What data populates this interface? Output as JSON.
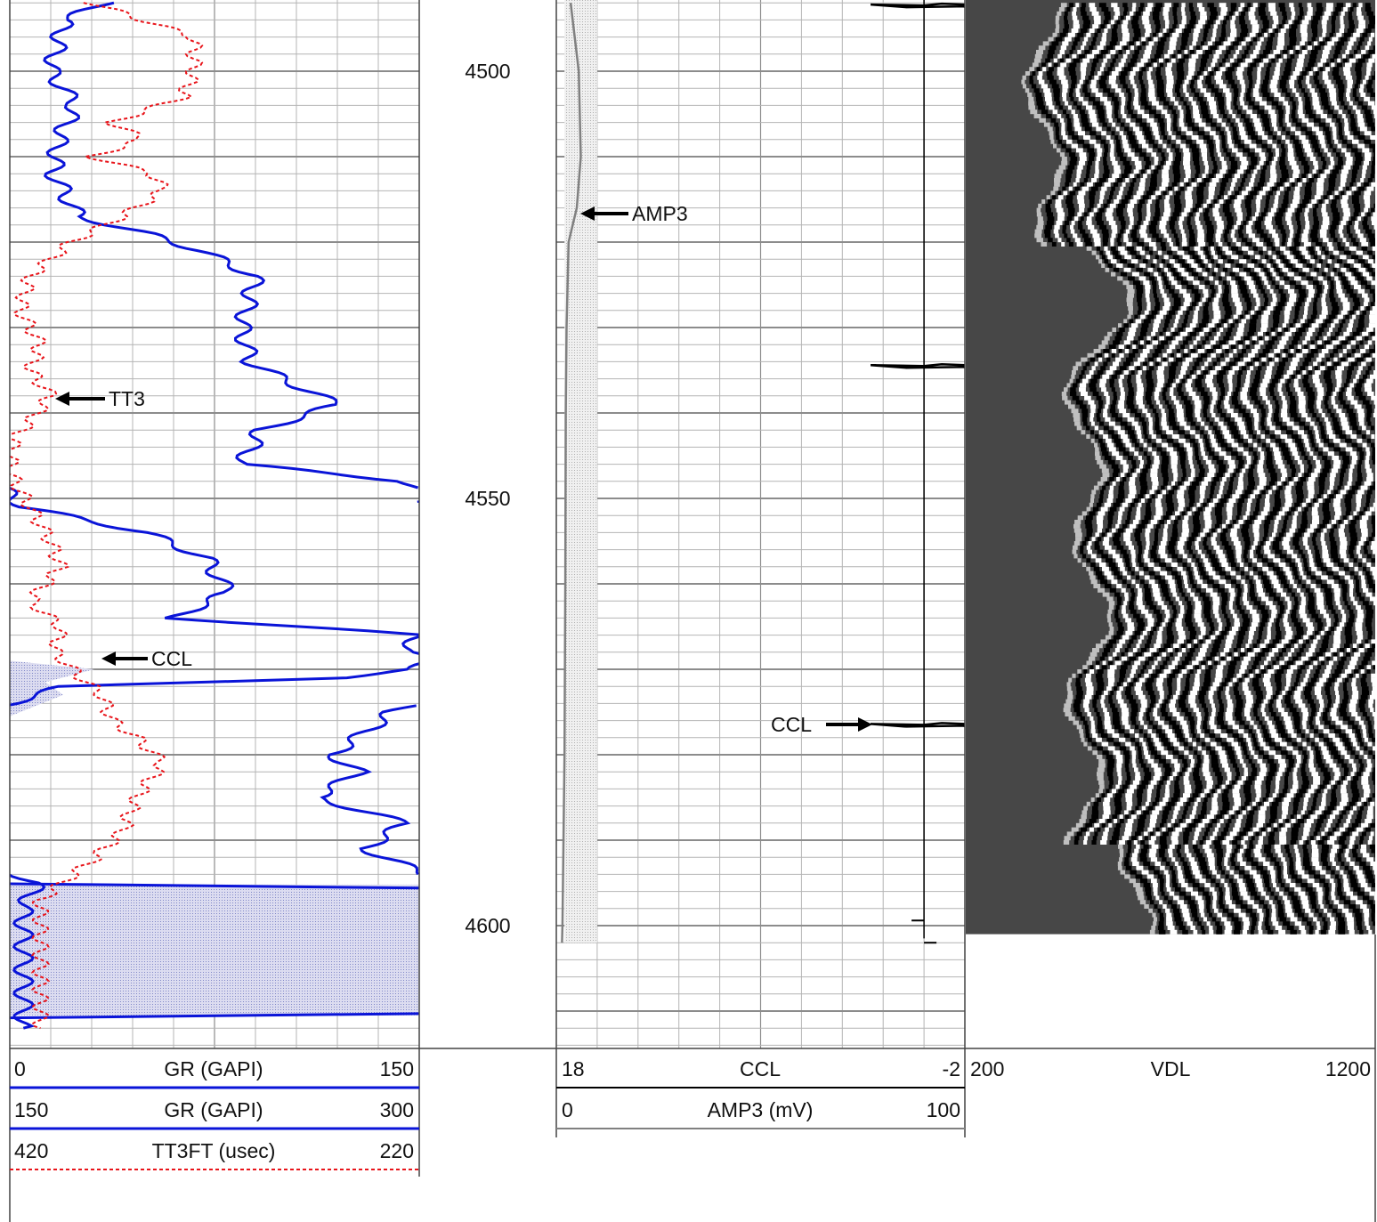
{
  "chart_data": {
    "type": "line",
    "title": "",
    "ylabel": "",
    "depth_range": [
      4492,
      4614
    ],
    "depth_ticks": [
      "4500",
      "4550",
      "4600"
    ],
    "colors": {
      "gr": "#0a14d8",
      "tt3": "#e8141a",
      "grid_major": "#8c8c8c",
      "grid_minor": "#b4b4b4",
      "shade": "#c9cbe6",
      "amp3": "#808080",
      "vdl_bg": "#474747"
    },
    "tracks": [
      {
        "id": "track1",
        "curves": [
          {
            "name": "GR (GAPI)",
            "left": "0",
            "right": "150",
            "style": "solid",
            "color": "#0a14d8"
          },
          {
            "name": "GR (GAPI)",
            "left": "150",
            "right": "300",
            "style": "solid",
            "color": "#0a14d8"
          },
          {
            "name": "TT3FT (usec)",
            "left": "420",
            "right": "220",
            "style": "dashed",
            "color": "#e8141a"
          }
        ],
        "annotations": [
          "TT3",
          "CCL"
        ]
      },
      {
        "id": "track2",
        "curves": [
          {
            "name": "CCL",
            "left": "18",
            "right": "-2",
            "style": "solid",
            "color": "#000000"
          },
          {
            "name": "AMP3 (mV)",
            "left": "0",
            "right": "100",
            "style": "solid",
            "color": "#808080"
          }
        ],
        "annotations": [
          "AMP3",
          "CCL"
        ]
      },
      {
        "id": "track3",
        "curves": [
          {
            "name": "VDL",
            "left": "200",
            "right": "1200",
            "style": "image",
            "color": "#000000"
          }
        ]
      }
    ],
    "series": [
      {
        "name": "GR (GAPI)",
        "depth": [
          4492,
          4494,
          4500,
          4504,
          4508,
          4512,
          4517,
          4519,
          4521,
          4524,
          4530,
          4534,
          4536,
          4539,
          4542,
          4546,
          4548,
          4551,
          4554,
          4557,
          4561,
          4564,
          4566,
          4568,
          4569,
          4570,
          4571,
          4572,
          4575,
          4577,
          4580,
          4582,
          4585,
          4588,
          4591,
          4595,
          4598,
          4602,
          4605,
          4607,
          4610,
          4612
        ],
        "gr": [
          35,
          20,
          15,
          24,
          18,
          16,
          25,
          50,
          70,
          90,
          85,
          88,
          100,
          120,
          92,
          85,
          145,
          155,
          200,
          222,
          230,
          210,
          300,
          295,
          305,
          298,
          270,
          170,
          140,
          132,
          118,
          128,
          112,
          145,
          130,
          160,
          155,
          155,
          155,
          155,
          155,
          155
        ]
      },
      {
        "name": "TT3FT (usec)",
        "depth": [
          4492,
          4496,
          4500,
          4503,
          4506,
          4508,
          4510,
          4512,
          4514,
          4517,
          4520,
          4524,
          4528,
          4532,
          4535,
          4538,
          4541,
          4543,
          4547,
          4551,
          4555,
          4558,
          4562,
          4565,
          4568,
          4571,
          4573,
          4576,
          4578,
          4581,
          4584,
          4586,
          4589,
          4592,
          4597,
          4600,
          4606,
          4612
        ],
        "tt3": [
          380,
          330,
          330,
          335,
          370,
          355,
          380,
          350,
          345,
          365,
          390,
          410,
          415,
          405,
          410,
          400,
          410,
          418,
          420,
          410,
          400,
          395,
          410,
          395,
          398,
          385,
          375,
          370,
          358,
          345,
          355,
          360,
          365,
          378,
          405,
          405,
          405,
          405
        ]
      },
      {
        "name": "AMP3 (mV)",
        "depth": [
          4492,
          4500,
          4510,
          4516,
          4520,
          4530,
          4540,
          4560,
          4580,
          4600,
          4602
        ],
        "amp3": [
          3.5,
          5.5,
          6.0,
          5.0,
          3.0,
          2.5,
          2.3,
          2.2,
          2.0,
          1.5,
          1.4
        ]
      }
    ],
    "ccl_spikes": [
      4492.3,
      4534.5,
      4576.5
    ],
    "vdl_end_depth": 4601
  },
  "headers": {
    "track1": [
      {
        "left": "0",
        "name": "GR (GAPI)",
        "right": "150"
      },
      {
        "left": "150",
        "name": "GR (GAPI)",
        "right": "300"
      },
      {
        "left": "420",
        "name": "TT3FT (usec)",
        "right": "220"
      }
    ],
    "track2": [
      {
        "left": "18",
        "name": "CCL",
        "right": "-2"
      },
      {
        "left": "0",
        "name": "AMP3 (mV)",
        "right": "100"
      }
    ],
    "track3": [
      {
        "left": "200",
        "name": "VDL",
        "right": "1200"
      }
    ]
  },
  "annotations": {
    "tt3": "TT3",
    "ccl_track1": "CCL",
    "amp3": "AMP3",
    "ccl_track2": "CCL"
  }
}
